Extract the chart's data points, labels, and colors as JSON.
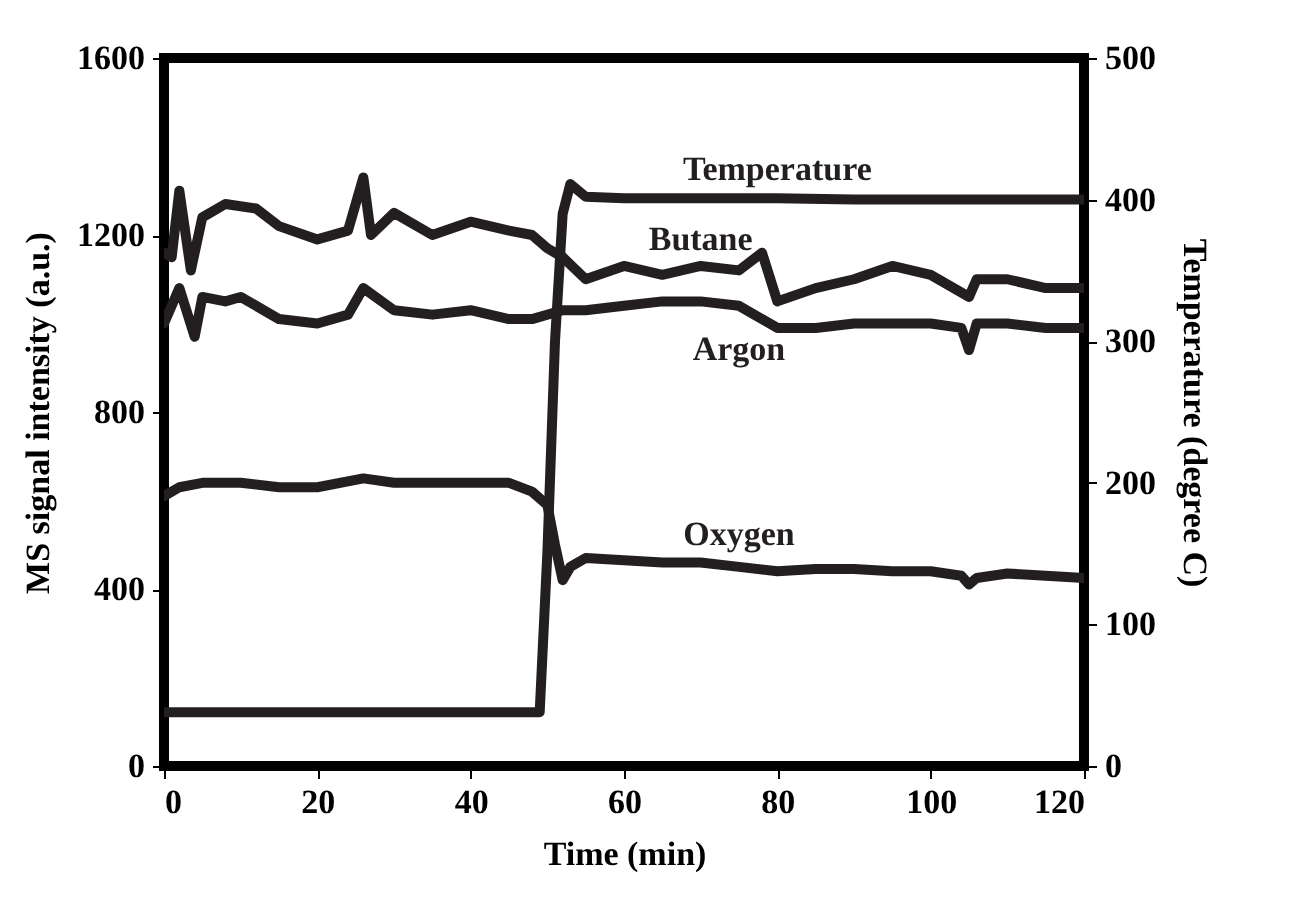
{
  "chart_data": {
    "type": "line",
    "xlabel": "Time (min)",
    "ylabel": "MS signal intensity (a.u.)",
    "y2label": "Temperature (degree C)",
    "xlim": [
      0,
      120
    ],
    "xticks": [
      0,
      20,
      40,
      60,
      80,
      100,
      120
    ],
    "ylim": [
      0,
      1600
    ],
    "yticks": [
      0,
      400,
      800,
      1200,
      1600
    ],
    "y2lim": [
      0,
      500
    ],
    "y2ticks": [
      0,
      100,
      200,
      300,
      400,
      500
    ],
    "grid": false,
    "marker": "none",
    "line_style": "solid",
    "series": [
      {
        "name": "Temperature",
        "axis": "y2",
        "color": "#231f20",
        "x": [
          0,
          10,
          20,
          30,
          40,
          49,
          50,
          51,
          52,
          53,
          55,
          60,
          70,
          80,
          90,
          100,
          110,
          120
        ],
        "values": [
          38,
          38,
          38,
          38,
          38,
          38,
          150,
          300,
          390,
          411,
          402,
          401,
          401,
          401,
          400,
          400,
          400,
          400
        ]
      },
      {
        "name": "Butane",
        "color": "#231f20",
        "x": [
          0,
          1,
          2,
          3.5,
          5,
          8,
          12,
          15,
          20,
          24,
          26,
          27,
          30,
          35,
          40,
          45,
          48,
          50,
          52,
          55,
          60,
          65,
          70,
          75,
          78,
          80,
          85,
          90,
          95,
          100,
          105,
          106,
          110,
          115,
          120
        ],
        "values": [
          1160,
          1150,
          1300,
          1120,
          1240,
          1270,
          1260,
          1220,
          1190,
          1210,
          1330,
          1200,
          1250,
          1200,
          1230,
          1210,
          1200,
          1170,
          1150,
          1100,
          1130,
          1110,
          1130,
          1120,
          1160,
          1050,
          1080,
          1100,
          1130,
          1110,
          1060,
          1100,
          1100,
          1080,
          1080
        ]
      },
      {
        "name": "Argon",
        "color": "#231f20",
        "x": [
          0,
          2,
          4,
          5,
          8,
          10,
          15,
          20,
          24,
          26,
          30,
          35,
          40,
          45,
          48,
          52,
          55,
          60,
          65,
          70,
          75,
          80,
          85,
          90,
          95,
          100,
          104,
          105,
          106,
          110,
          115,
          120
        ],
        "values": [
          1000,
          1080,
          970,
          1060,
          1050,
          1060,
          1010,
          1000,
          1020,
          1080,
          1030,
          1020,
          1030,
          1010,
          1010,
          1030,
          1030,
          1040,
          1050,
          1050,
          1040,
          990,
          990,
          1000,
          1000,
          1000,
          990,
          940,
          1000,
          1000,
          990,
          990
        ]
      },
      {
        "name": "Oxygen",
        "color": "#231f20",
        "x": [
          0,
          2,
          5,
          10,
          15,
          20,
          26,
          30,
          35,
          40,
          45,
          48,
          50,
          51,
          52,
          53,
          55,
          60,
          65,
          70,
          75,
          80,
          85,
          90,
          95,
          100,
          104,
          105,
          106,
          110,
          115,
          120
        ],
        "values": [
          610,
          630,
          640,
          640,
          630,
          630,
          650,
          640,
          640,
          640,
          640,
          620,
          590,
          500,
          420,
          450,
          470,
          465,
          460,
          460,
          450,
          440,
          445,
          445,
          440,
          440,
          430,
          410,
          425,
          435,
          430,
          425
        ]
      }
    ]
  }
}
